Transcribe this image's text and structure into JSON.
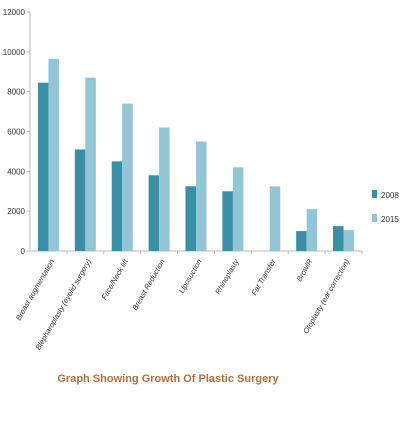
{
  "chart_data": {
    "type": "bar",
    "title": "Graph Showing Growth Of Plastic Surgery",
    "xlabel": "",
    "ylabel": "",
    "ylim": [
      0,
      12000
    ],
    "yticks": [
      0,
      2000,
      4000,
      6000,
      8000,
      10000,
      12000
    ],
    "grid": false,
    "legend_position": "right",
    "categories": [
      "Breast augmentation",
      "Blepharoplasty (eyelid surgery)",
      "Face/Neck lift",
      "Breast Reduction",
      "Liposuction",
      "Rhinoplasty",
      "Fat Transfer",
      "BrowlR",
      "Otoplasty (ear correction)"
    ],
    "series": [
      {
        "name": "2008",
        "color": "#3a8fa6",
        "values": [
          8450,
          5100,
          4500,
          3800,
          3250,
          3000,
          0,
          1000,
          1250
        ]
      },
      {
        "name": "2015",
        "color": "#92c6d6",
        "values": [
          9650,
          8700,
          7400,
          6200,
          5500,
          4200,
          3250,
          2100,
          1050
        ]
      }
    ]
  }
}
